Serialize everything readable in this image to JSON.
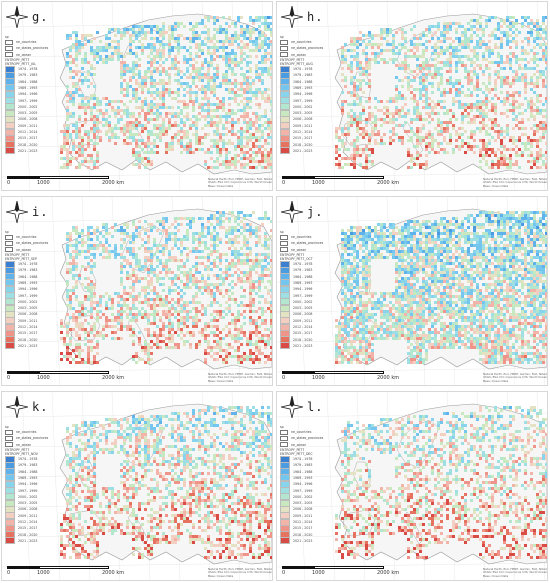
{
  "legend_common": {
    "top_labels": [
      "sp",
      "ne_countries",
      "ne_states_provinces",
      "ne_ocean",
      "ENTROPY_PET7"
    ],
    "ranges": [
      "1974 - 1978",
      "1979 - 1983",
      "1984 - 1988",
      "1989 - 1993",
      "1994 - 1996",
      "1997 - 1999",
      "2000 - 2002",
      "2003 - 2005",
      "2006 - 2008",
      "2009 - 2011",
      "2012 - 2014",
      "2015 - 2017",
      "2018 - 2020",
      "2021 - 2023"
    ],
    "colors": [
      "#3a7fd0",
      "#4b9be0",
      "#5fb3ea",
      "#74c6ee",
      "#88d4ec",
      "#9ddfe3",
      "#b3e6cf",
      "#c8e8c0",
      "#e3e3c3",
      "#f2cfc0",
      "#f2b3a8",
      "#ee9488",
      "#e6735f",
      "#d94b45"
    ]
  },
  "scale": {
    "zero": "0",
    "mid": "1000",
    "end": "2000 km"
  },
  "credit": "Natural Earth, Esri, HERE, Garmin, FAO, NOAA, USGS; ESA CCI; Copernicus C3S; World Ocean Base; Ocean Data",
  "panels": [
    {
      "label": "g.",
      "field": "ENTROPY_PET7_JUL",
      "pattern": 0,
      "density": 0.55,
      "bias": 0.58
    },
    {
      "label": "h.",
      "field": "ENTROPY_PET7_AUG",
      "pattern": 1,
      "density": 0.5,
      "bias": 0.5
    },
    {
      "label": "i.",
      "field": "ENTROPY_PET7_SEP",
      "pattern": 2,
      "density": 0.52,
      "bias": 0.5
    },
    {
      "label": "j.",
      "field": "ENTROPY_PET7_OCT",
      "pattern": 3,
      "density": 0.75,
      "bias": 0.68
    },
    {
      "label": "k.",
      "field": "ENTROPY_PET7_NOV",
      "pattern": 4,
      "density": 0.5,
      "bias": 0.42
    },
    {
      "label": "l.",
      "field": "ENTROPY_PET7_DEC",
      "pattern": 5,
      "density": 0.45,
      "bias": 0.4
    }
  ]
}
